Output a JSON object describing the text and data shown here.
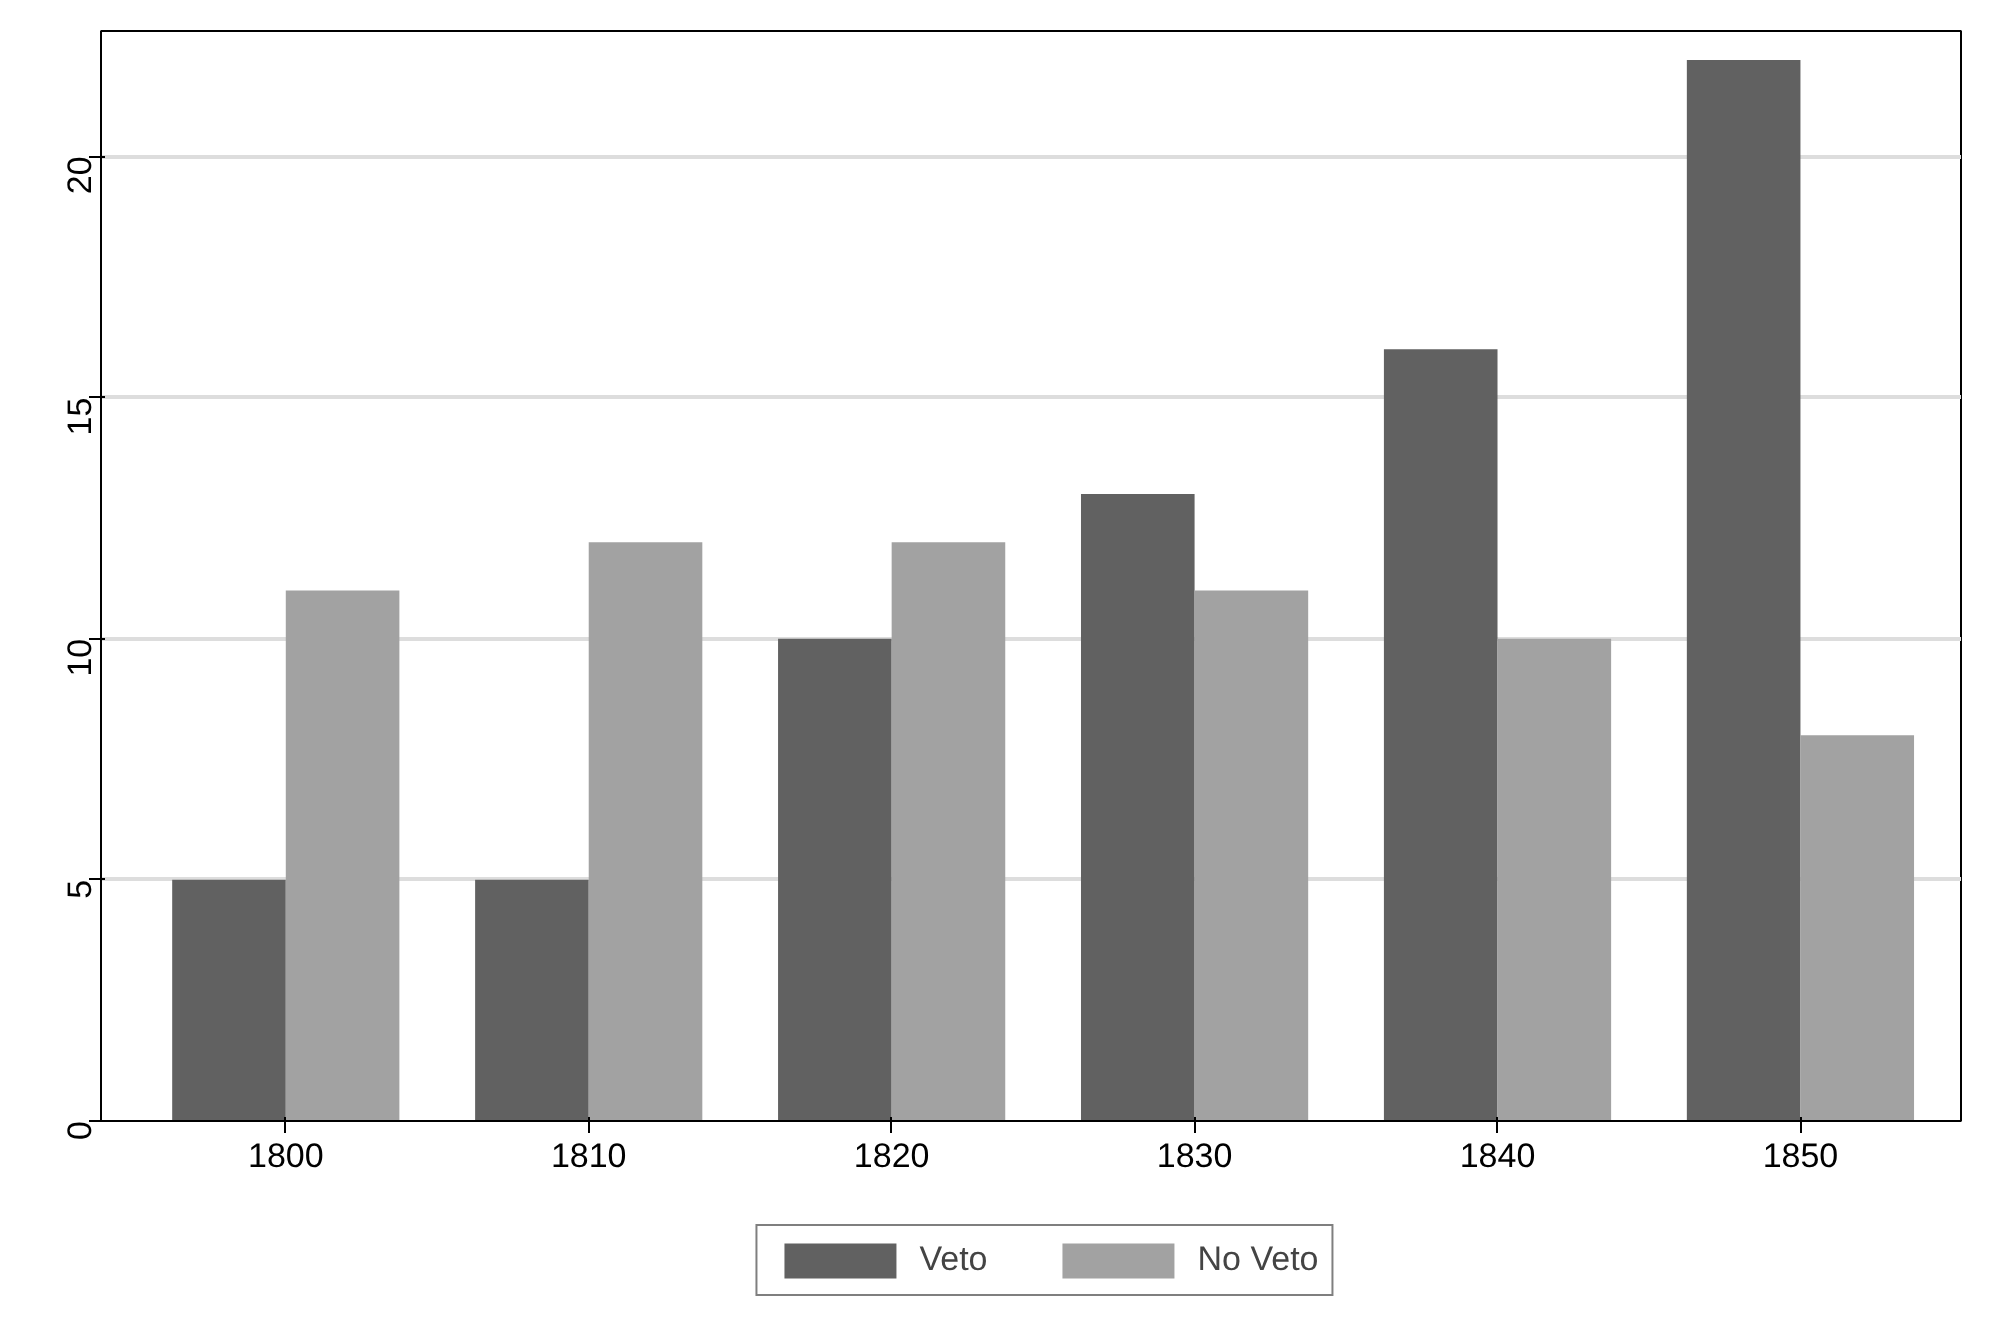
{
  "chart_data": {
    "type": "bar",
    "categories": [
      "1800",
      "1810",
      "1820",
      "1830",
      "1840",
      "1850"
    ],
    "series": [
      {
        "name": "Veto",
        "color": "#616161",
        "values": [
          5,
          5,
          10,
          13,
          16,
          22
        ]
      },
      {
        "name": "No Veto",
        "color": "#a2a2a2",
        "values": [
          11,
          12,
          12,
          11,
          10,
          8
        ]
      }
    ],
    "ylim": [
      0,
      22.6
    ],
    "yticks": [
      0,
      5,
      10,
      15,
      20
    ],
    "grid": "y",
    "legend": "bottom"
  }
}
